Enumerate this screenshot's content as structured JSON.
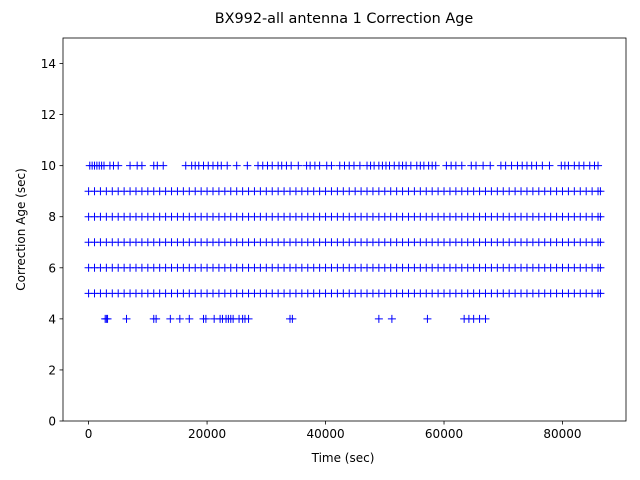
{
  "chart_data": {
    "type": "scatter",
    "title": "BX992-all antenna 1 Correction Age",
    "x_label": "Time (sec)",
    "y_label": "Correction Age (sec)",
    "color": "#0000ff",
    "marker": "+",
    "xlim": [
      -4320,
      90720
    ],
    "ylim": [
      0,
      15
    ],
    "xticks": [
      0,
      20000,
      40000,
      60000,
      80000
    ],
    "yticks": [
      0,
      2,
      4,
      6,
      8,
      10,
      12,
      14
    ],
    "x": [
      0,
      1000,
      2000,
      3000,
      4000,
      5000,
      6000,
      7000,
      8000,
      9000,
      10000,
      11000,
      12000,
      13000,
      14000,
      15000,
      16000,
      17000,
      18000,
      19000,
      20000,
      21000,
      22000,
      23000,
      24000,
      25000,
      26000,
      27000,
      28000,
      29000,
      30000,
      31000,
      32000,
      33000,
      34000,
      35000,
      36000,
      37000,
      38000,
      39000,
      40000,
      41000,
      42000,
      43000,
      44000,
      45000,
      46000,
      47000,
      48000,
      49000,
      50000,
      51000,
      52000,
      53000,
      54000,
      55000,
      56000,
      57000,
      58000,
      59000,
      60000,
      61000,
      62000,
      63000,
      64000,
      65000,
      66000,
      67000,
      68000,
      69000,
      70000,
      71000,
      72000,
      73000,
      74000,
      75000,
      76000,
      77000,
      78000,
      79000,
      80000,
      81000,
      82000,
      83000,
      84000,
      85000,
      86000,
      86400,
      0,
      1000,
      2000,
      3000,
      4000,
      5000,
      6000,
      7000,
      8000,
      9000,
      10000,
      11000,
      12000,
      13000,
      14000,
      15000,
      16000,
      17000,
      18000,
      19000,
      20000,
      21000,
      22000,
      23000,
      24000,
      25000,
      26000,
      27000,
      28000,
      29000,
      30000,
      31000,
      32000,
      33000,
      34000,
      35000,
      36000,
      37000,
      38000,
      39000,
      40000,
      41000,
      42000,
      43000,
      44000,
      45000,
      46000,
      47000,
      48000,
      49000,
      50000,
      51000,
      52000,
      53000,
      54000,
      55000,
      56000,
      57000,
      58000,
      59000,
      60000,
      61000,
      62000,
      63000,
      64000,
      65000,
      66000,
      67000,
      68000,
      69000,
      70000,
      71000,
      72000,
      73000,
      74000,
      75000,
      76000,
      77000,
      78000,
      79000,
      80000,
      81000,
      82000,
      83000,
      84000,
      85000,
      86000,
      86400,
      0,
      1000,
      2000,
      3000,
      4000,
      5000,
      6000,
      7000,
      8000,
      9000,
      10000,
      11000,
      12000,
      13000,
      14000,
      15000,
      16000,
      17000,
      18000,
      19000,
      20000,
      21000,
      22000,
      23000,
      24000,
      25000,
      26000,
      27000,
      28000,
      29000,
      30000,
      31000,
      32000,
      33000,
      34000,
      35000,
      36000,
      37000,
      38000,
      39000,
      40000,
      41000,
      42000,
      43000,
      44000,
      45000,
      46000,
      47000,
      48000,
      49000,
      50000,
      51000,
      52000,
      53000,
      54000,
      55000,
      56000,
      57000,
      58000,
      59000,
      60000,
      61000,
      62000,
      63000,
      64000,
      65000,
      66000,
      67000,
      68000,
      69000,
      70000,
      71000,
      72000,
      73000,
      74000,
      75000,
      76000,
      77000,
      78000,
      79000,
      80000,
      81000,
      82000,
      83000,
      84000,
      85000,
      86000,
      86400,
      0,
      1000,
      2000,
      3000,
      4000,
      5000,
      6000,
      7000,
      8000,
      9000,
      10000,
      11000,
      12000,
      13000,
      14000,
      15000,
      16000,
      17000,
      18000,
      19000,
      20000,
      21000,
      22000,
      23000,
      24000,
      25000,
      26000,
      27000,
      28000,
      29000,
      30000,
      31000,
      32000,
      33000,
      34000,
      35000,
      36000,
      37000,
      38000,
      39000,
      40000,
      41000,
      42000,
      43000,
      44000,
      45000,
      46000,
      47000,
      48000,
      49000,
      50000,
      51000,
      52000,
      53000,
      54000,
      55000,
      56000,
      57000,
      58000,
      59000,
      60000,
      61000,
      62000,
      63000,
      64000,
      65000,
      66000,
      67000,
      68000,
      69000,
      70000,
      71000,
      72000,
      73000,
      74000,
      75000,
      76000,
      77000,
      78000,
      79000,
      80000,
      81000,
      82000,
      83000,
      84000,
      85000,
      86000,
      86400,
      0,
      1000,
      2000,
      3000,
      4000,
      5000,
      6000,
      7000,
      8000,
      9000,
      10000,
      11000,
      12000,
      13000,
      14000,
      15000,
      16000,
      17000,
      18000,
      19000,
      20000,
      21000,
      22000,
      23000,
      24000,
      25000,
      26000,
      27000,
      28000,
      29000,
      30000,
      31000,
      32000,
      33000,
      34000,
      35000,
      36000,
      37000,
      38000,
      39000,
      40000,
      41000,
      42000,
      43000,
      44000,
      45000,
      46000,
      47000,
      48000,
      49000,
      50000,
      51000,
      52000,
      53000,
      54000,
      55000,
      56000,
      57000,
      58000,
      59000,
      60000,
      61000,
      62000,
      63000,
      64000,
      65000,
      66000,
      67000,
      68000,
      69000,
      70000,
      71000,
      72000,
      73000,
      74000,
      75000,
      76000,
      77000,
      78000,
      79000,
      80000,
      81000,
      82000,
      83000,
      84000,
      85000,
      86000,
      86400,
      200,
      600,
      1000,
      1400,
      1800,
      2200,
      2600,
      3600,
      4200,
      5000,
      7000,
      8200,
      9000,
      11000,
      11600,
      12600,
      16400,
      17400,
      18000,
      18600,
      19400,
      20200,
      21000,
      21800,
      22400,
      23400,
      25000,
      26800,
      28600,
      29400,
      30200,
      31000,
      32000,
      32600,
      33400,
      34200,
      35400,
      36800,
      37400,
      38200,
      39000,
      40200,
      41000,
      42400,
      43200,
      44000,
      44800,
      45800,
      47000,
      47600,
      48200,
      49000,
      49600,
      50200,
      50800,
      51600,
      52400,
      53000,
      53600,
      54400,
      55400,
      56000,
      56600,
      57400,
      58000,
      58600,
      60400,
      61200,
      62000,
      63000,
      64600,
      65400,
      66600,
      67800,
      69600,
      70400,
      71400,
      72400,
      73200,
      74000,
      74800,
      75600,
      76600,
      77800,
      79800,
      80400,
      81000,
      82000,
      82800,
      83600,
      84600,
      85400,
      86000,
      2800,
      3000,
      3200,
      6400,
      11000,
      11400,
      13800,
      15400,
      17000,
      19400,
      19800,
      21200,
      22200,
      22600,
      23200,
      23600,
      24000,
      24400,
      25400,
      26000,
      26400,
      27000,
      34000,
      34400,
      49000,
      51200,
      57200,
      63400,
      64200,
      65000,
      66000,
      67000
    ],
    "values": [
      5,
      5,
      5,
      5,
      5,
      5,
      5,
      5,
      5,
      5,
      5,
      5,
      5,
      5,
      5,
      5,
      5,
      5,
      5,
      5,
      5,
      5,
      5,
      5,
      5,
      5,
      5,
      5,
      5,
      5,
      5,
      5,
      5,
      5,
      5,
      5,
      5,
      5,
      5,
      5,
      5,
      5,
      5,
      5,
      5,
      5,
      5,
      5,
      5,
      5,
      5,
      5,
      5,
      5,
      5,
      5,
      5,
      5,
      5,
      5,
      5,
      5,
      5,
      5,
      5,
      5,
      5,
      5,
      5,
      5,
      5,
      5,
      5,
      5,
      5,
      5,
      5,
      5,
      5,
      5,
      5,
      5,
      5,
      5,
      5,
      5,
      5,
      5,
      6,
      6,
      6,
      6,
      6,
      6,
      6,
      6,
      6,
      6,
      6,
      6,
      6,
      6,
      6,
      6,
      6,
      6,
      6,
      6,
      6,
      6,
      6,
      6,
      6,
      6,
      6,
      6,
      6,
      6,
      6,
      6,
      6,
      6,
      6,
      6,
      6,
      6,
      6,
      6,
      6,
      6,
      6,
      6,
      6,
      6,
      6,
      6,
      6,
      6,
      6,
      6,
      6,
      6,
      6,
      6,
      6,
      6,
      6,
      6,
      6,
      6,
      6,
      6,
      6,
      6,
      6,
      6,
      6,
      6,
      6,
      6,
      6,
      6,
      6,
      6,
      6,
      6,
      6,
      6,
      6,
      6,
      6,
      6,
      6,
      6,
      6,
      6,
      7,
      7,
      7,
      7,
      7,
      7,
      7,
      7,
      7,
      7,
      7,
      7,
      7,
      7,
      7,
      7,
      7,
      7,
      7,
      7,
      7,
      7,
      7,
      7,
      7,
      7,
      7,
      7,
      7,
      7,
      7,
      7,
      7,
      7,
      7,
      7,
      7,
      7,
      7,
      7,
      7,
      7,
      7,
      7,
      7,
      7,
      7,
      7,
      7,
      7,
      7,
      7,
      7,
      7,
      7,
      7,
      7,
      7,
      7,
      7,
      7,
      7,
      7,
      7,
      7,
      7,
      7,
      7,
      7,
      7,
      7,
      7,
      7,
      7,
      7,
      7,
      7,
      7,
      7,
      7,
      7,
      7,
      7,
      7,
      7,
      7,
      7,
      7,
      8,
      8,
      8,
      8,
      8,
      8,
      8,
      8,
      8,
      8,
      8,
      8,
      8,
      8,
      8,
      8,
      8,
      8,
      8,
      8,
      8,
      8,
      8,
      8,
      8,
      8,
      8,
      8,
      8,
      8,
      8,
      8,
      8,
      8,
      8,
      8,
      8,
      8,
      8,
      8,
      8,
      8,
      8,
      8,
      8,
      8,
      8,
      8,
      8,
      8,
      8,
      8,
      8,
      8,
      8,
      8,
      8,
      8,
      8,
      8,
      8,
      8,
      8,
      8,
      8,
      8,
      8,
      8,
      8,
      8,
      8,
      8,
      8,
      8,
      8,
      8,
      8,
      8,
      8,
      8,
      8,
      8,
      8,
      8,
      8,
      8,
      8,
      8,
      9,
      9,
      9,
      9,
      9,
      9,
      9,
      9,
      9,
      9,
      9,
      9,
      9,
      9,
      9,
      9,
      9,
      9,
      9,
      9,
      9,
      9,
      9,
      9,
      9,
      9,
      9,
      9,
      9,
      9,
      9,
      9,
      9,
      9,
      9,
      9,
      9,
      9,
      9,
      9,
      9,
      9,
      9,
      9,
      9,
      9,
      9,
      9,
      9,
      9,
      9,
      9,
      9,
      9,
      9,
      9,
      9,
      9,
      9,
      9,
      9,
      9,
      9,
      9,
      9,
      9,
      9,
      9,
      9,
      9,
      9,
      9,
      9,
      9,
      9,
      9,
      9,
      9,
      9,
      9,
      9,
      9,
      9,
      9,
      9,
      9,
      9,
      9,
      10,
      10,
      10,
      10,
      10,
      10,
      10,
      10,
      10,
      10,
      10,
      10,
      10,
      10,
      10,
      10,
      10,
      10,
      10,
      10,
      10,
      10,
      10,
      10,
      10,
      10,
      10,
      10,
      10,
      10,
      10,
      10,
      10,
      10,
      10,
      10,
      10,
      10,
      10,
      10,
      10,
      10,
      10,
      10,
      10,
      10,
      10,
      10,
      10,
      10,
      10,
      10,
      10,
      10,
      10,
      10,
      10,
      10,
      10,
      10,
      10,
      10,
      10,
      10,
      10,
      10,
      10,
      10,
      10,
      10,
      10,
      10,
      10,
      10,
      10,
      10,
      10,
      10,
      10,
      10,
      10,
      10,
      10,
      10,
      10,
      10,
      10,
      10,
      10,
      10,
      10,
      10,
      10,
      4,
      4,
      4,
      4,
      4,
      4,
      4,
      4,
      4,
      4,
      4,
      4,
      4,
      4,
      4,
      4,
      4,
      4,
      4,
      4,
      4,
      4,
      4,
      4,
      4,
      4,
      4,
      4,
      4,
      4,
      4,
      4
    ]
  }
}
